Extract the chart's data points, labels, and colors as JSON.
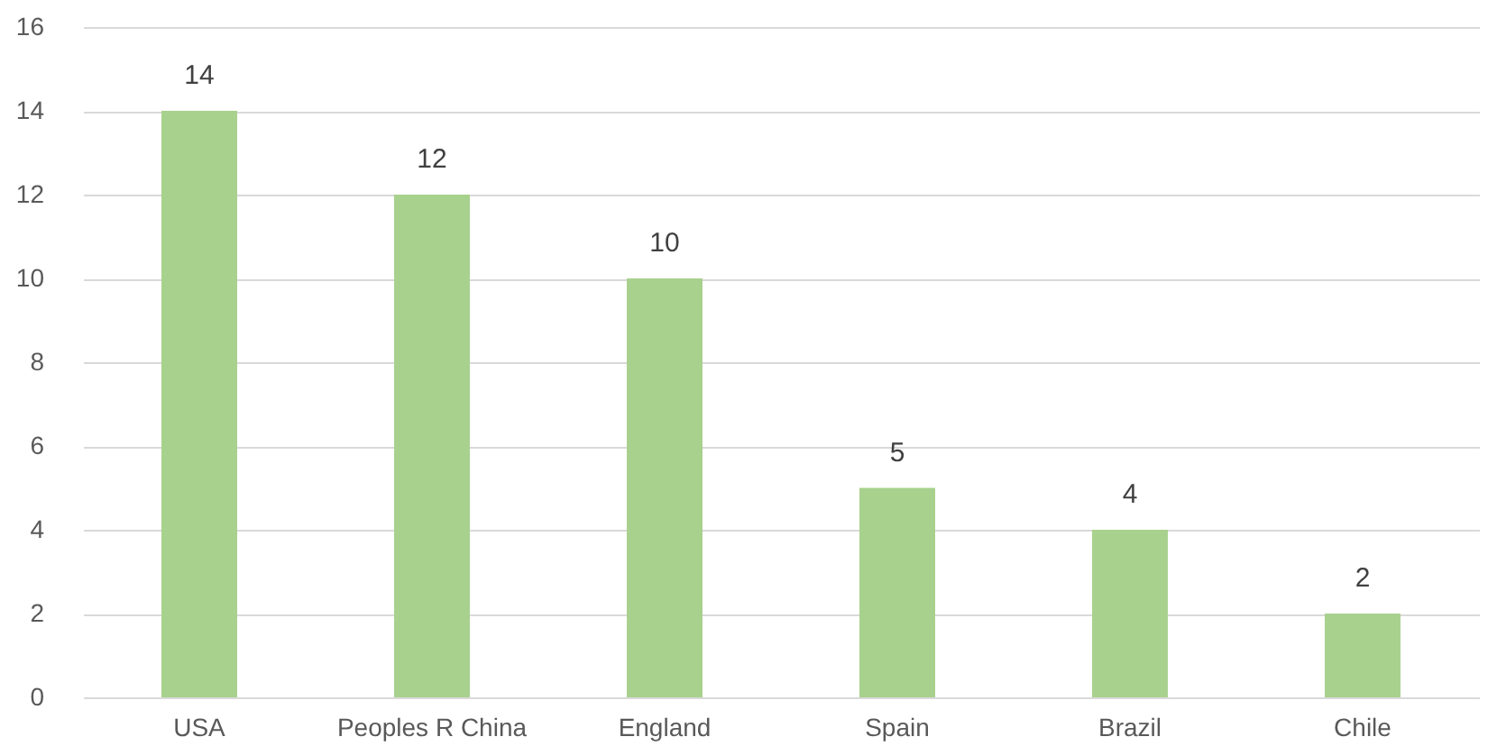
{
  "chart_data": {
    "type": "bar",
    "categories": [
      "USA",
      "Peoples R China",
      "England",
      "Spain",
      "Brazil",
      "Chile"
    ],
    "values": [
      14,
      12,
      10,
      5,
      4,
      2
    ],
    "color": "#a9d18e",
    "ylim": [
      0,
      16
    ],
    "yticks": [
      0,
      2,
      4,
      6,
      8,
      10,
      12,
      14,
      16
    ],
    "grid": "y",
    "data_labels": true
  }
}
